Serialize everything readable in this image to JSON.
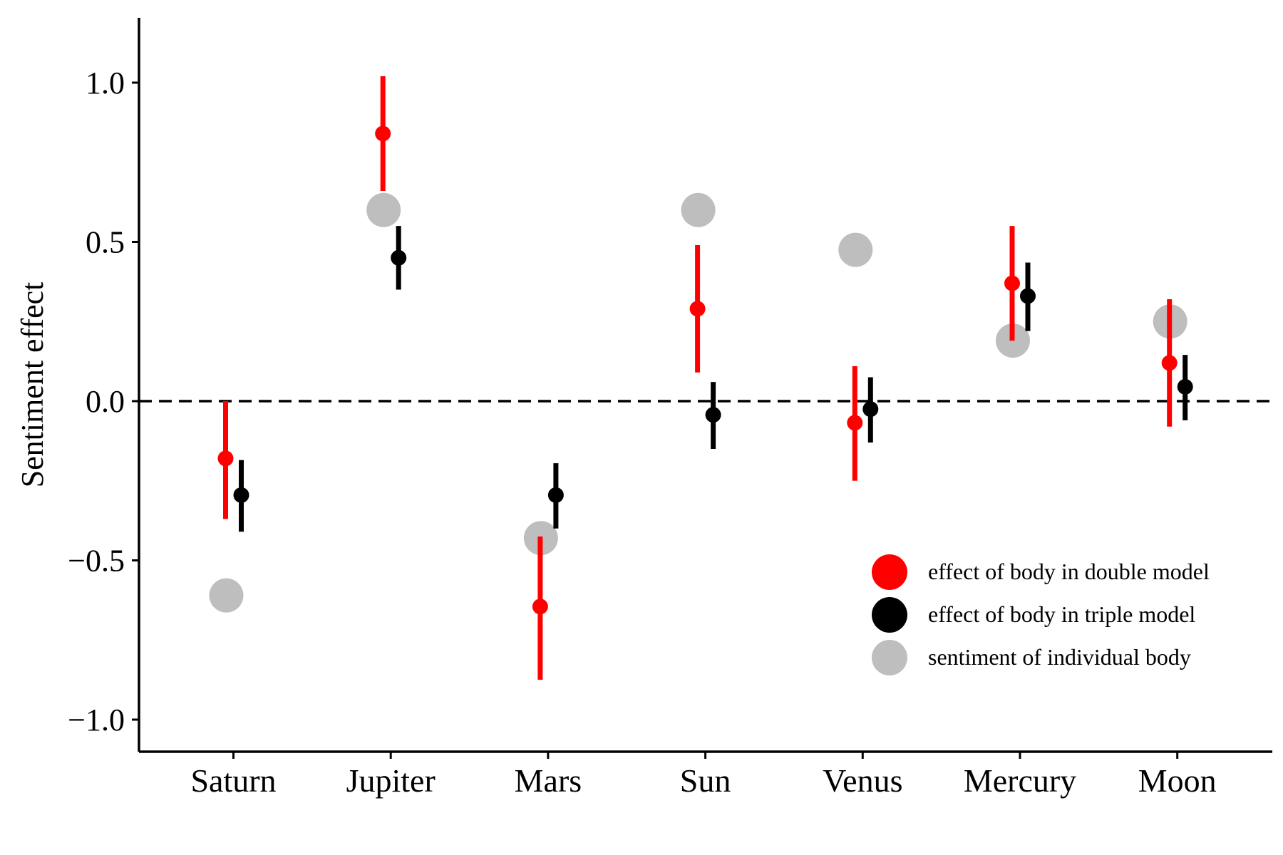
{
  "chart_data": {
    "type": "scatter",
    "title": "",
    "xlabel": "",
    "ylabel": "Sentiment effect",
    "ylim": [
      -1.1,
      1.2
    ],
    "yticks": [
      1.0,
      0.5,
      0.0,
      -0.5,
      -1.0
    ],
    "ytick_labels": [
      "1.0",
      "0.5",
      "0.0",
      "−0.5",
      "−1.0"
    ],
    "categories": [
      "Saturn",
      "Jupiter",
      "Mars",
      "Sun",
      "Venus",
      "Mercury",
      "Moon"
    ],
    "reference_line": {
      "y": 0,
      "style": "dashed",
      "color": "#000000"
    },
    "grid": false,
    "legend_position": "bottom-right",
    "series": [
      {
        "name": "effect of body in double model",
        "color": "#ff0000",
        "marker": "point-with-errorbar",
        "values": [
          -0.18,
          0.84,
          -0.645,
          0.29,
          -0.068,
          0.37,
          0.12
        ],
        "err_low": [
          -0.37,
          0.66,
          -0.875,
          0.09,
          -0.25,
          0.19,
          -0.08
        ],
        "err_high": [
          0.0,
          1.02,
          -0.425,
          0.49,
          0.11,
          0.55,
          0.32
        ]
      },
      {
        "name": "effect of body in triple model",
        "color": "#000000",
        "marker": "point-with-errorbar",
        "values": [
          -0.295,
          0.45,
          -0.295,
          -0.043,
          -0.025,
          0.33,
          0.045
        ],
        "err_low": [
          -0.41,
          0.35,
          -0.4,
          -0.15,
          -0.13,
          0.22,
          -0.06
        ],
        "err_high": [
          -0.185,
          0.55,
          -0.195,
          0.06,
          0.075,
          0.435,
          0.145
        ]
      },
      {
        "name": "sentiment of individual body",
        "color": "#bebebe",
        "marker": "large-point",
        "values": [
          -0.61,
          0.6,
          -0.43,
          0.6,
          0.475,
          0.19,
          0.25
        ]
      }
    ]
  }
}
